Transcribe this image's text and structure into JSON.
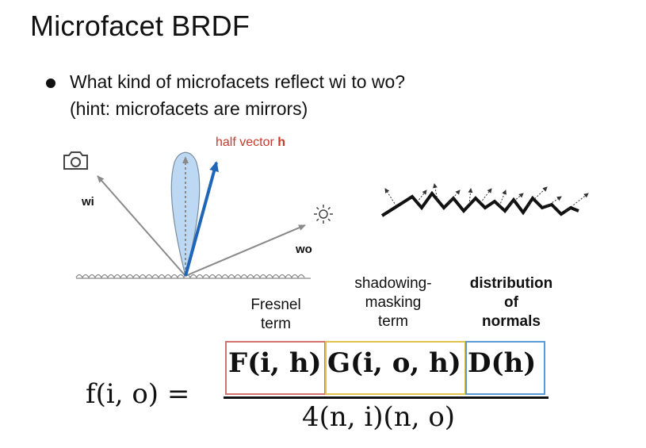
{
  "slide": {
    "title": "Microfacet BRDF",
    "bullet_line1": "What kind of microfacets reflect wi to wo?",
    "bullet_line2": "(hint: microfacets are mirrors)"
  },
  "diagram": {
    "half_vector_prefix": "half vector ",
    "half_vector_symbol": "h",
    "wi_label": "wi",
    "wo_label": "wo",
    "camera_icon": "camera-icon",
    "light_icon": "sun-icon",
    "colors": {
      "half_vector": "#1f66b8",
      "lobe": "#bcd8f2",
      "half_vector_label": "#c9382b"
    }
  },
  "terms": {
    "fresnel_line1": "Fresnel",
    "fresnel_line2": "term",
    "shadow_line1": "shadowing-",
    "shadow_line2": "masking",
    "shadow_line3": "term",
    "dist_line1": "distribution",
    "dist_line2": "of",
    "dist_line3": "normals"
  },
  "equation": {
    "lhs": "f(i, o) =",
    "fresnel": "F(i, h)",
    "shadowing": "G(i, o, h)",
    "distribution": "D(h)",
    "denominator": "4(n, i)(n, o)",
    "colors": {
      "fresnel_box": "#d4726d",
      "shadowing_box": "#e2c24e",
      "distribution_box": "#5d9ad4"
    }
  }
}
